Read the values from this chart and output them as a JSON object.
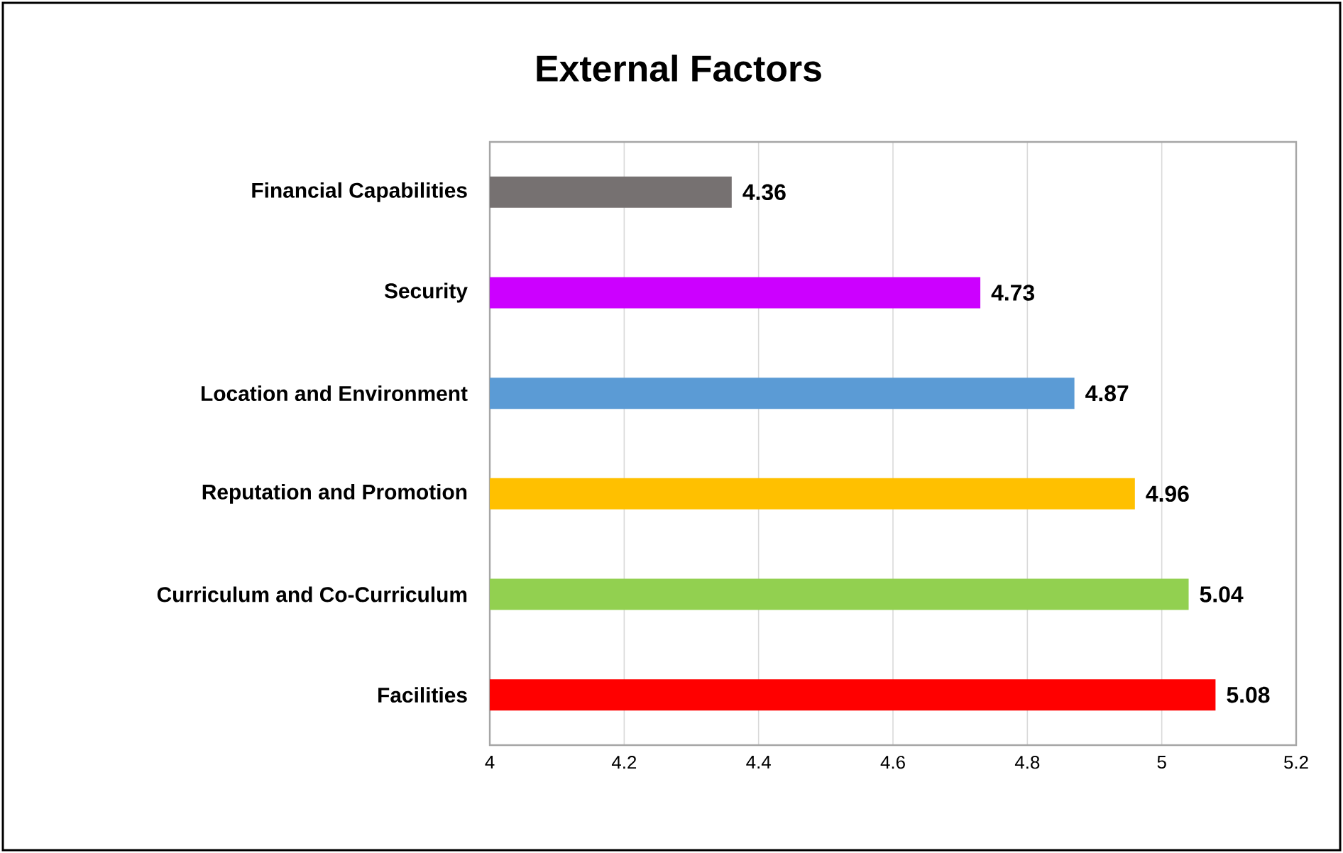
{
  "chart_data": {
    "type": "bar",
    "orientation": "horizontal",
    "title": "External Factors",
    "categories": [
      "Financial Capabilities",
      "Security",
      "Location and Environment",
      "Reputation and Promotion",
      "Curriculum and Co-Curriculum",
      "Facilities"
    ],
    "values": [
      4.36,
      4.73,
      4.87,
      4.96,
      5.04,
      5.08
    ],
    "colors": [
      "#767171",
      "#cc00ff",
      "#5b9bd5",
      "#ffc000",
      "#92d050",
      "#ff0000"
    ],
    "xlim": [
      4,
      5.2
    ],
    "xticks": [
      4,
      4.2,
      4.4,
      4.6,
      4.8,
      5,
      5.2
    ],
    "grid": "x",
    "data_labels": true
  }
}
